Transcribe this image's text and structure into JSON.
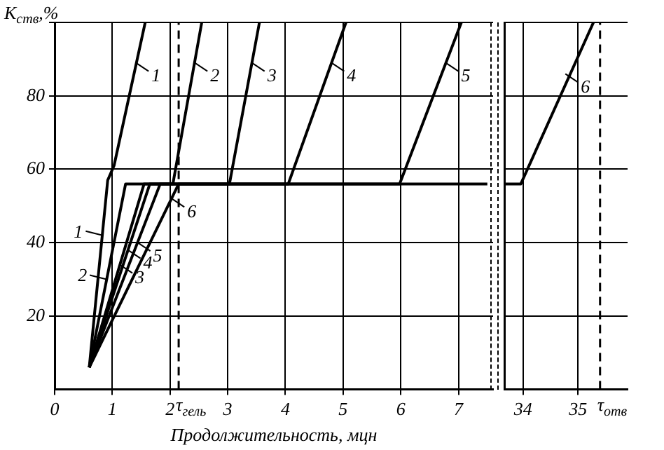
{
  "chart_data": [
    {
      "type": "line",
      "ylabel": "K$_{ств}$,%",
      "xlabel": "Продолжительность, мцн",
      "xlim": [
        0,
        7.6
      ],
      "ylim": [
        0,
        100
      ],
      "xticks": [
        0,
        1,
        2,
        3,
        4,
        5,
        6,
        7
      ],
      "yticks": [
        20,
        40,
        60,
        80,
        {
          "value": 100,
          "label": null
        }
      ],
      "grid": true,
      "legend": false,
      "marker": "none",
      "line_style": "solid",
      "ref_lines": [
        {
          "axis": "x",
          "value": 2.15,
          "label": "τ$_{гель}$",
          "line_style": "dashed"
        }
      ],
      "annotations": [
        {
          "text": "1",
          "x": 1.41,
          "y": 89
        },
        {
          "text": "2",
          "x": 2.43,
          "y": 89
        },
        {
          "text": "3",
          "x": 3.42,
          "y": 89
        },
        {
          "text": "4",
          "x": 4.8,
          "y": 89
        },
        {
          "text": "5",
          "x": 6.78,
          "y": 89
        },
        {
          "text": "1",
          "x": 0.83,
          "y": 42
        },
        {
          "text": "2",
          "x": 0.9,
          "y": 30
        },
        {
          "text": "3",
          "x": 1.13,
          "y": 34
        },
        {
          "text": "4",
          "x": 1.27,
          "y": 38
        },
        {
          "text": "5",
          "x": 1.44,
          "y": 40
        },
        {
          "text": "6",
          "x": 2.03,
          "y": 52
        }
      ],
      "series": [
        {
          "color": "#000000",
          "x": [
            0.6,
            0.92,
            1.03,
            1.57
          ],
          "values": [
            6,
            57,
            61,
            100
          ]
        },
        {
          "color": "#000000",
          "x": [
            0.6,
            1.23,
            2.05,
            2.55
          ],
          "values": [
            6,
            56,
            56,
            100
          ]
        },
        {
          "color": "#000000",
          "x": [
            0.6,
            1.55,
            3.03,
            3.55
          ],
          "values": [
            6,
            56,
            56,
            100
          ]
        },
        {
          "color": "#000000",
          "x": [
            0.6,
            1.65,
            4.05,
            5.05
          ],
          "values": [
            6,
            56,
            56,
            100
          ]
        },
        {
          "color": "#000000",
          "x": [
            0.6,
            1.83,
            5.98,
            7.05
          ],
          "values": [
            6,
            56,
            56,
            100
          ]
        },
        {
          "color": "#000000",
          "x": [
            0.6,
            2.15,
            7.5
          ],
          "values": [
            6,
            56,
            56
          ]
        }
      ]
    },
    {
      "type": "line",
      "xlim": [
        33.66,
        35.9
      ],
      "ylim": [
        0,
        100
      ],
      "xticks": [
        34,
        35
      ],
      "yticks": [
        20,
        40,
        60,
        80,
        {
          "value": 100,
          "label": null
        }
      ],
      "tick_labels": "x",
      "grid": true,
      "legend": false,
      "marker": "none",
      "line_style": "solid",
      "ref_lines": [
        {
          "axis": "x",
          "value": 35.4,
          "label": "τ$_{отв}$",
          "line_style": "dashed"
        }
      ],
      "annotations": [
        {
          "text": "6",
          "x": 34.77,
          "y": 86
        }
      ],
      "series": [
        {
          "color": "#000000",
          "x": [
            33.66,
            33.96,
            35.28
          ],
          "values": [
            56,
            56,
            100
          ]
        }
      ]
    }
  ]
}
